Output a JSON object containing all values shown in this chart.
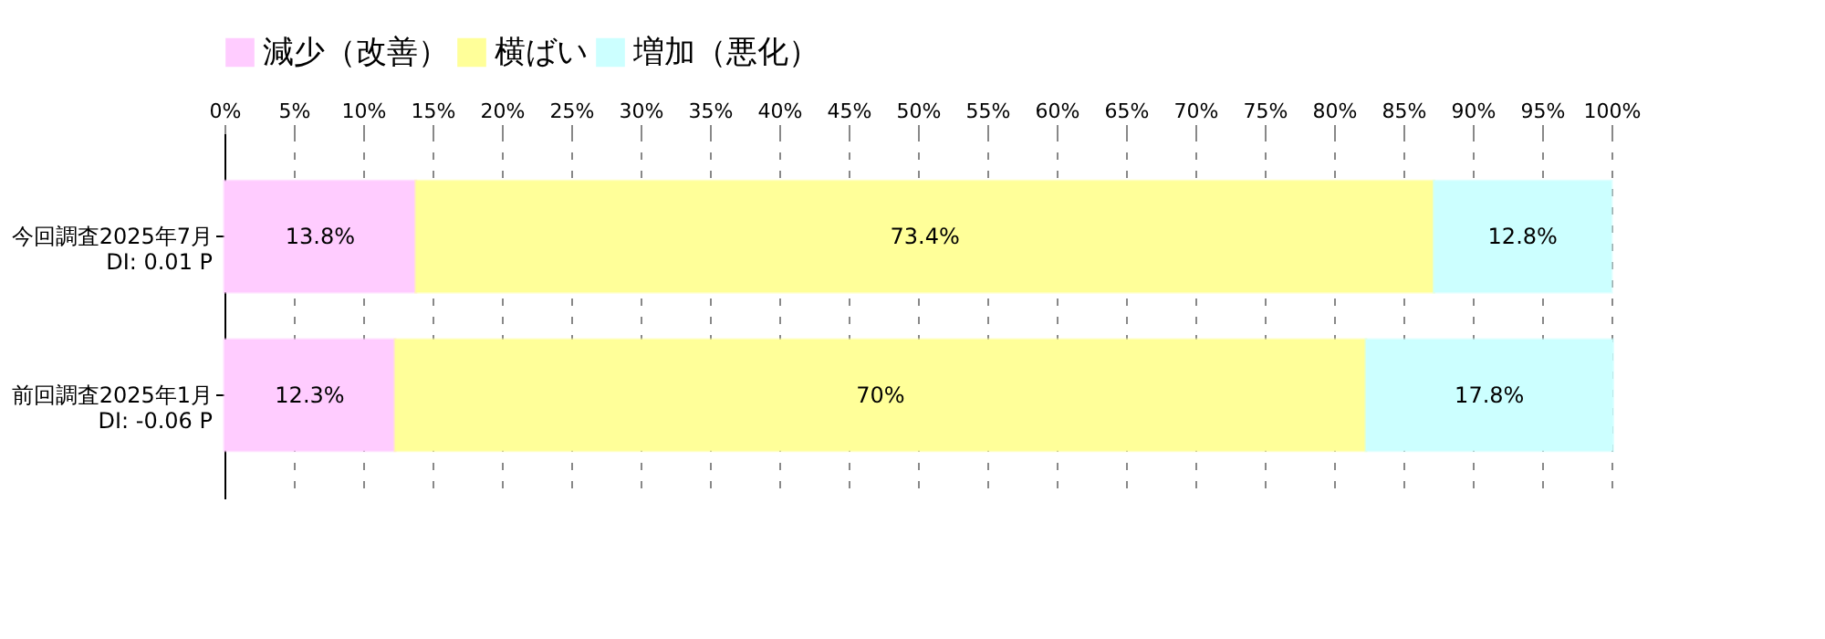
{
  "chart_data": {
    "type": "bar",
    "orientation": "horizontal",
    "stacked": true,
    "categories": [
      "今回調査2025年7月\n DI: 0.01 P",
      "前回調査2025年1月\n DI: -0.06 P"
    ],
    "series": [
      {
        "name": "減少（改善）",
        "color": "#ffccff",
        "values": [
          13.8,
          12.3
        ],
        "value_labels": [
          "13.8%",
          "12.3%"
        ]
      },
      {
        "name": "横ばい",
        "color": "#ffff99",
        "values": [
          73.4,
          70
        ],
        "value_labels": [
          "73.4%",
          "70%"
        ]
      },
      {
        "name": "増加（悪化）",
        "color": "#ccffff",
        "values": [
          12.8,
          17.8
        ],
        "value_labels": [
          "12.8%",
          "17.8%"
        ]
      }
    ],
    "xlim": [
      0,
      100
    ],
    "xticks": [
      {
        "value": 0,
        "label": "0%"
      },
      {
        "value": 5,
        "label": "5%"
      },
      {
        "value": 10,
        "label": "10%"
      },
      {
        "value": 15,
        "label": "15%"
      },
      {
        "value": 20,
        "label": "20%"
      },
      {
        "value": 25,
        "label": "25%"
      },
      {
        "value": 30,
        "label": "30%"
      },
      {
        "value": 35,
        "label": "35%"
      },
      {
        "value": 40,
        "label": "40%"
      },
      {
        "value": 45,
        "label": "45%"
      },
      {
        "value": 50,
        "label": "50%"
      },
      {
        "value": 55,
        "label": "55%"
      },
      {
        "value": 60,
        "label": "60%"
      },
      {
        "value": 65,
        "label": "65%"
      },
      {
        "value": 70,
        "label": "70%"
      },
      {
        "value": 75,
        "label": "75%"
      },
      {
        "value": 80,
        "label": "80%"
      },
      {
        "value": 85,
        "label": "85%"
      },
      {
        "value": 90,
        "label": "90%"
      },
      {
        "value": 95,
        "label": "95%"
      },
      {
        "value": 100,
        "label": "100%"
      }
    ],
    "grid": "x",
    "legend": "top"
  }
}
